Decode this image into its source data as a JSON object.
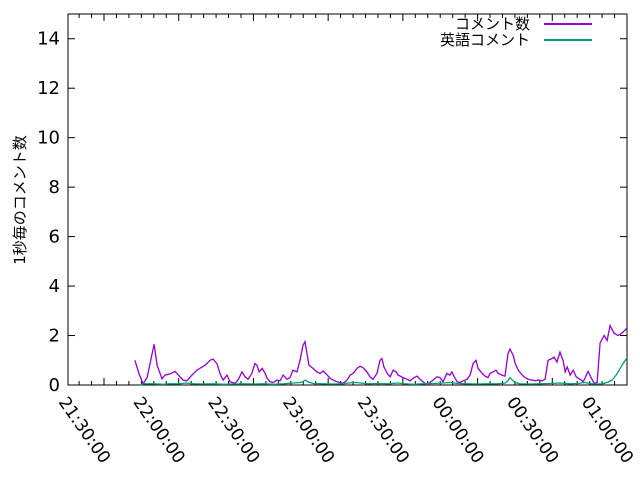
{
  "figure": {
    "background_color": "#ffffff",
    "text_color": "#000000",
    "border_color": "#000000"
  },
  "chart_data": {
    "type": "line",
    "title": "",
    "xlabel": "",
    "ylabel": "1秒毎のコメント数",
    "x_unit": "minutes since 21:30:00",
    "xlim": [
      -14.46,
      210
    ],
    "ylim": [
      0,
      15
    ],
    "grid": false,
    "legend_position": "top-right-inside",
    "yticks": [
      0,
      2,
      4,
      6,
      8,
      10,
      12,
      14
    ],
    "xticks": [
      {
        "m": 0,
        "label": "21:30:00"
      },
      {
        "m": 30,
        "label": "22:00:00"
      },
      {
        "m": 60,
        "label": "22:30:00"
      },
      {
        "m": 90,
        "label": "23:00:00"
      },
      {
        "m": 120,
        "label": "23:30:00"
      },
      {
        "m": 150,
        "label": "00:00:00"
      },
      {
        "m": 180,
        "label": "00:30:00"
      },
      {
        "m": 210,
        "label": "01:00:00"
      }
    ],
    "x_minor_tick_step_minutes": 5,
    "series": [
      {
        "name": "コメント数",
        "color": "#9400d3",
        "points": [
          [
            12.4,
            1.0
          ],
          [
            14.1,
            0.45
          ],
          [
            15.7,
            0.05
          ],
          [
            17.3,
            0.3
          ],
          [
            20.1,
            1.65
          ],
          [
            21.3,
            0.8
          ],
          [
            23.3,
            0.25
          ],
          [
            24.5,
            0.4
          ],
          [
            26.5,
            0.45
          ],
          [
            28.5,
            0.55
          ],
          [
            30.5,
            0.33
          ],
          [
            31.7,
            0.2
          ],
          [
            33.3,
            0.17
          ],
          [
            35.3,
            0.4
          ],
          [
            37.3,
            0.6
          ],
          [
            39.4,
            0.73
          ],
          [
            40.6,
            0.8
          ],
          [
            42.6,
            1.0
          ],
          [
            43.8,
            1.05
          ],
          [
            45.4,
            0.85
          ],
          [
            46.6,
            0.45
          ],
          [
            47.8,
            0.2
          ],
          [
            49.4,
            0.4
          ],
          [
            50.6,
            0.13
          ],
          [
            52.6,
            0.07
          ],
          [
            53.8,
            0.2
          ],
          [
            55.4,
            0.53
          ],
          [
            56.6,
            0.33
          ],
          [
            57.8,
            0.23
          ],
          [
            59.4,
            0.47
          ],
          [
            60.6,
            0.87
          ],
          [
            61.4,
            0.8
          ],
          [
            62.3,
            0.53
          ],
          [
            63.5,
            0.67
          ],
          [
            64.7,
            0.47
          ],
          [
            65.5,
            0.27
          ],
          [
            66.7,
            0.13
          ],
          [
            67.9,
            0.1
          ],
          [
            69.5,
            0.2
          ],
          [
            70.7,
            0.17
          ],
          [
            71.9,
            0.4
          ],
          [
            73.5,
            0.23
          ],
          [
            74.7,
            0.3
          ],
          [
            75.9,
            0.6
          ],
          [
            77.5,
            0.53
          ],
          [
            78.7,
            1.0
          ],
          [
            79.9,
            1.6
          ],
          [
            80.7,
            1.75
          ],
          [
            81.5,
            1.27
          ],
          [
            82.3,
            0.8
          ],
          [
            83.9,
            0.67
          ],
          [
            85.5,
            0.53
          ],
          [
            86.8,
            0.47
          ],
          [
            88.0,
            0.57
          ],
          [
            89.6,
            0.4
          ],
          [
            90.8,
            0.27
          ],
          [
            92.0,
            0.2
          ],
          [
            93.6,
            0.13
          ],
          [
            94.8,
            0.1
          ],
          [
            96.0,
            0.07
          ],
          [
            97.6,
            0.2
          ],
          [
            98.8,
            0.4
          ],
          [
            100.0,
            0.47
          ],
          [
            101.6,
            0.67
          ],
          [
            102.8,
            0.76
          ],
          [
            104.0,
            0.7
          ],
          [
            105.6,
            0.53
          ],
          [
            106.8,
            0.33
          ],
          [
            108.0,
            0.23
          ],
          [
            109.6,
            0.47
          ],
          [
            110.8,
            1.0
          ],
          [
            111.6,
            1.07
          ],
          [
            112.4,
            0.73
          ],
          [
            113.7,
            0.47
          ],
          [
            114.9,
            0.33
          ],
          [
            116.1,
            0.6
          ],
          [
            117.3,
            0.53
          ],
          [
            118.1,
            0.4
          ],
          [
            120.1,
            0.3
          ],
          [
            121.7,
            0.23
          ],
          [
            122.9,
            0.17
          ],
          [
            124.1,
            0.27
          ],
          [
            125.7,
            0.36
          ],
          [
            126.9,
            0.23
          ],
          [
            128.1,
            0.13
          ],
          [
            129.7,
            0.0
          ],
          [
            130.9,
            0.1
          ],
          [
            132.1,
            0.2
          ],
          [
            133.7,
            0.33
          ],
          [
            134.9,
            0.3
          ],
          [
            136.1,
            0.13
          ],
          [
            137.7,
            0.47
          ],
          [
            138.9,
            0.4
          ],
          [
            139.7,
            0.53
          ],
          [
            140.6,
            0.33
          ],
          [
            141.8,
            0.13
          ],
          [
            143.0,
            0.1
          ],
          [
            144.2,
            0.17
          ],
          [
            145.8,
            0.23
          ],
          [
            147.0,
            0.4
          ],
          [
            148.2,
            0.87
          ],
          [
            149.4,
            1.0
          ],
          [
            150.2,
            0.67
          ],
          [
            151.8,
            0.47
          ],
          [
            153.0,
            0.36
          ],
          [
            154.2,
            0.3
          ],
          [
            155.0,
            0.47
          ],
          [
            156.2,
            0.53
          ],
          [
            157.4,
            0.6
          ],
          [
            158.2,
            0.47
          ],
          [
            159.8,
            0.4
          ],
          [
            161.0,
            0.36
          ],
          [
            162.2,
            1.27
          ],
          [
            163.0,
            1.45
          ],
          [
            164.3,
            1.2
          ],
          [
            165.1,
            0.87
          ],
          [
            166.3,
            0.6
          ],
          [
            167.9,
            0.4
          ],
          [
            169.1,
            0.3
          ],
          [
            170.3,
            0.23
          ],
          [
            171.9,
            0.2
          ],
          [
            173.1,
            0.17
          ],
          [
            174.3,
            0.2
          ],
          [
            175.9,
            0.17
          ],
          [
            177.1,
            0.23
          ],
          [
            178.3,
            1.0
          ],
          [
            179.9,
            1.07
          ],
          [
            180.7,
            1.13
          ],
          [
            181.9,
            0.93
          ],
          [
            183.1,
            1.33
          ],
          [
            184.3,
            1.0
          ],
          [
            185.2,
            0.53
          ],
          [
            186.0,
            0.73
          ],
          [
            187.2,
            0.4
          ],
          [
            188.4,
            0.6
          ],
          [
            189.6,
            0.33
          ],
          [
            190.4,
            0.27
          ],
          [
            191.2,
            0.23
          ],
          [
            192.4,
            0.13
          ],
          [
            193.2,
            0.3
          ],
          [
            194.4,
            0.55
          ],
          [
            195.6,
            0.3
          ],
          [
            196.8,
            0.07
          ],
          [
            198.0,
            0.1
          ],
          [
            199.2,
            1.7
          ],
          [
            200.8,
            2.0
          ],
          [
            202.0,
            1.8
          ],
          [
            203.2,
            2.4
          ],
          [
            204.8,
            2.1
          ],
          [
            206.4,
            2.0
          ],
          [
            208.0,
            2.1
          ],
          [
            210.0,
            2.3
          ]
        ]
      },
      {
        "name": "英語コメント",
        "color": "#009e73",
        "points": [
          [
            14.5,
            0.0
          ],
          [
            16,
            0.05
          ],
          [
            20,
            0.05
          ],
          [
            24,
            0.03
          ],
          [
            26,
            0.05
          ],
          [
            30,
            0.05
          ],
          [
            33,
            0.08
          ],
          [
            36,
            0.05
          ],
          [
            40,
            0.04
          ],
          [
            44,
            0.05
          ],
          [
            48,
            0.03
          ],
          [
            52,
            0.04
          ],
          [
            56,
            0.05
          ],
          [
            60,
            0.04
          ],
          [
            64,
            0.05
          ],
          [
            68,
            0.03
          ],
          [
            72,
            0.05
          ],
          [
            76,
            0.08
          ],
          [
            79,
            0.1
          ],
          [
            80,
            0.15
          ],
          [
            81,
            0.2
          ],
          [
            82,
            0.12
          ],
          [
            84,
            0.06
          ],
          [
            88,
            0.05
          ],
          [
            92,
            0.04
          ],
          [
            96,
            0.05
          ],
          [
            98,
            0.08
          ],
          [
            101,
            0.1
          ],
          [
            103,
            0.08
          ],
          [
            106,
            0.05
          ],
          [
            110,
            0.06
          ],
          [
            114,
            0.05
          ],
          [
            118,
            0.08
          ],
          [
            121,
            0.05
          ],
          [
            124,
            0.03
          ],
          [
            128,
            0.05
          ],
          [
            132,
            0.06
          ],
          [
            136,
            0.08
          ],
          [
            139,
            0.1
          ],
          [
            142,
            0.06
          ],
          [
            146,
            0.05
          ],
          [
            150,
            0.04
          ],
          [
            154,
            0.05
          ],
          [
            158,
            0.05
          ],
          [
            161,
            0.08
          ],
          [
            162,
            0.15
          ],
          [
            163,
            0.3
          ],
          [
            164,
            0.2
          ],
          [
            165,
            0.1
          ],
          [
            167,
            0.05
          ],
          [
            171,
            0.04
          ],
          [
            175,
            0.05
          ],
          [
            179,
            0.06
          ],
          [
            183,
            0.08
          ],
          [
            187,
            0.05
          ],
          [
            190,
            0.06
          ],
          [
            193,
            0.1
          ],
          [
            196,
            0.05
          ],
          [
            198,
            0.04
          ],
          [
            200,
            0.05
          ],
          [
            202,
            0.1
          ],
          [
            204,
            0.2
          ],
          [
            206,
            0.45
          ],
          [
            208,
            0.8
          ],
          [
            210,
            1.1
          ]
        ]
      }
    ]
  }
}
